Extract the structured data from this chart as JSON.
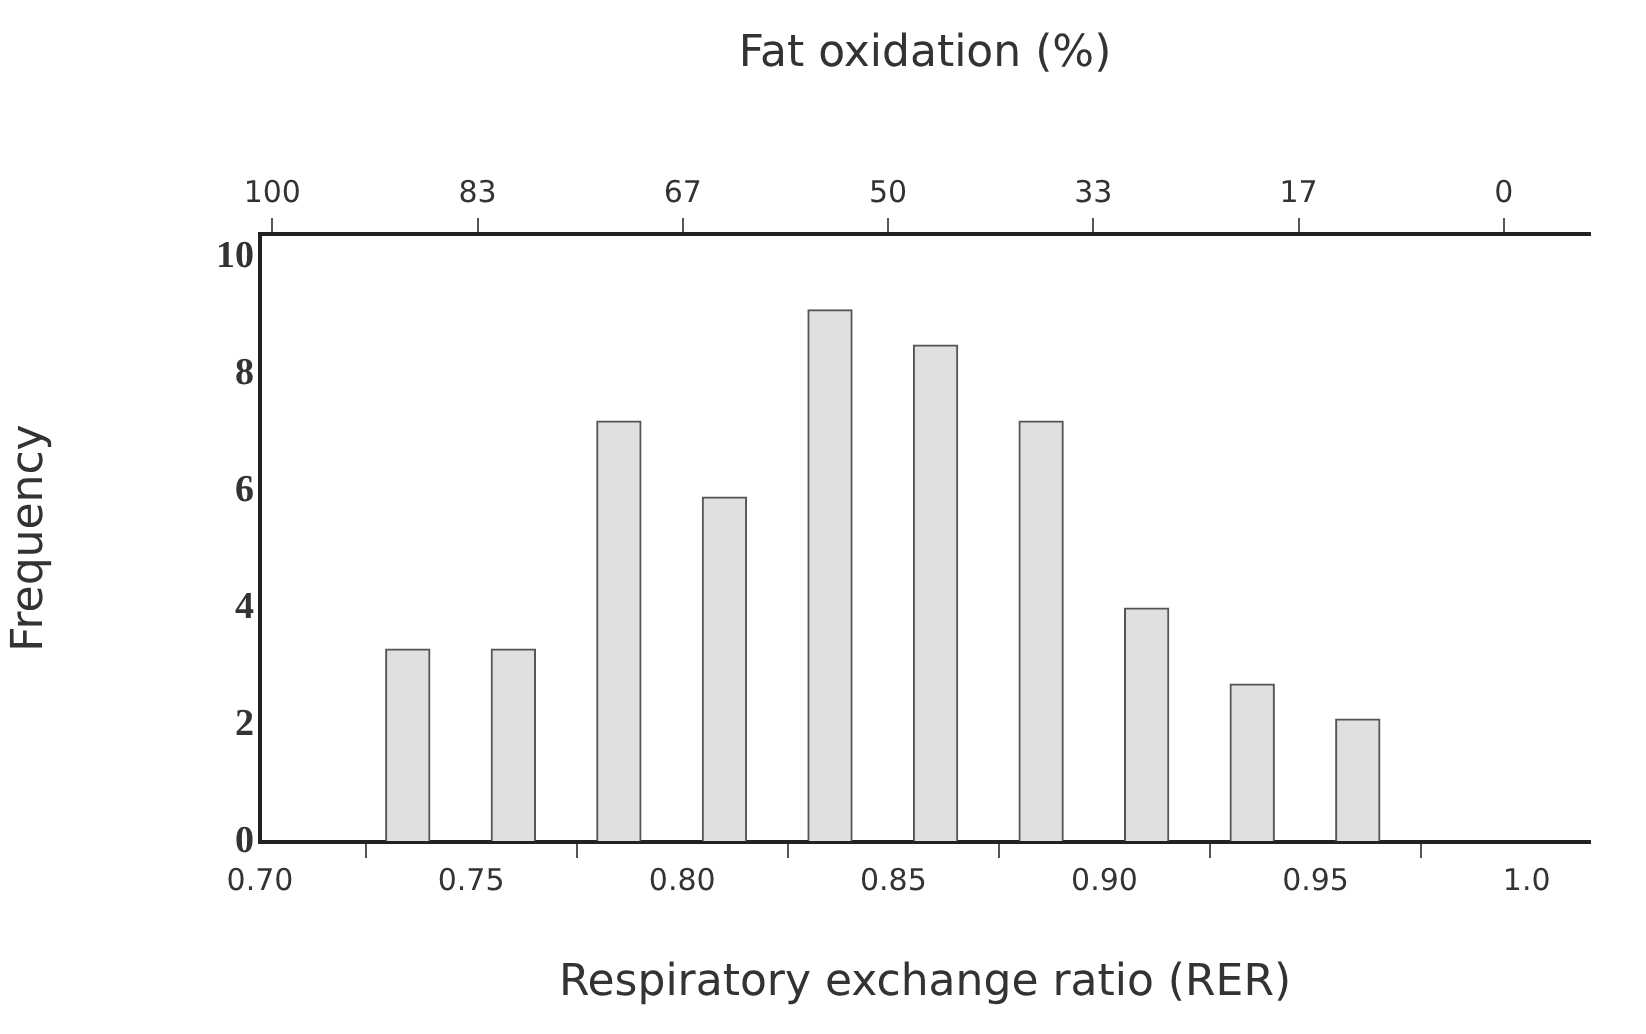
{
  "chart_data": {
    "type": "bar",
    "xlabel": "Respiratory exchange ratio (RER)",
    "ylabel": "Frequency",
    "x2label": "Fat oxidation (%)",
    "x": [
      0.735,
      0.76,
      0.785,
      0.81,
      0.835,
      0.86,
      0.885,
      0.91,
      0.935,
      0.96
    ],
    "values": [
      3.3,
      3.3,
      7.2,
      5.9,
      9.1,
      8.5,
      7.2,
      4.0,
      2.7,
      2.1
    ],
    "color": "#e0e0e0",
    "xlim": [
      0.7,
      1.015
    ],
    "xticks": [
      {
        "value": 0.7,
        "label": "0.70"
      },
      0.75,
      {
        "value": 0.8,
        "label": "0.80"
      },
      0.85,
      {
        "value": 0.9,
        "label": "0.90"
      },
      0.95,
      {
        "value": 1.0,
        "label": "1.0"
      }
    ],
    "x2lim": [
      101,
      -7
    ],
    "x2ticks": [
      100,
      {
        "value": 83.33,
        "label": "83"
      },
      {
        "value": 66.67,
        "label": "67"
      },
      50,
      {
        "value": 33.33,
        "label": "33"
      },
      {
        "value": 16.67,
        "label": "17"
      },
      0
    ],
    "ylim": [
      0,
      10.4
    ],
    "yticks": [
      0,
      2,
      4,
      6,
      8,
      10
    ],
    "grid": false,
    "legend": false
  }
}
